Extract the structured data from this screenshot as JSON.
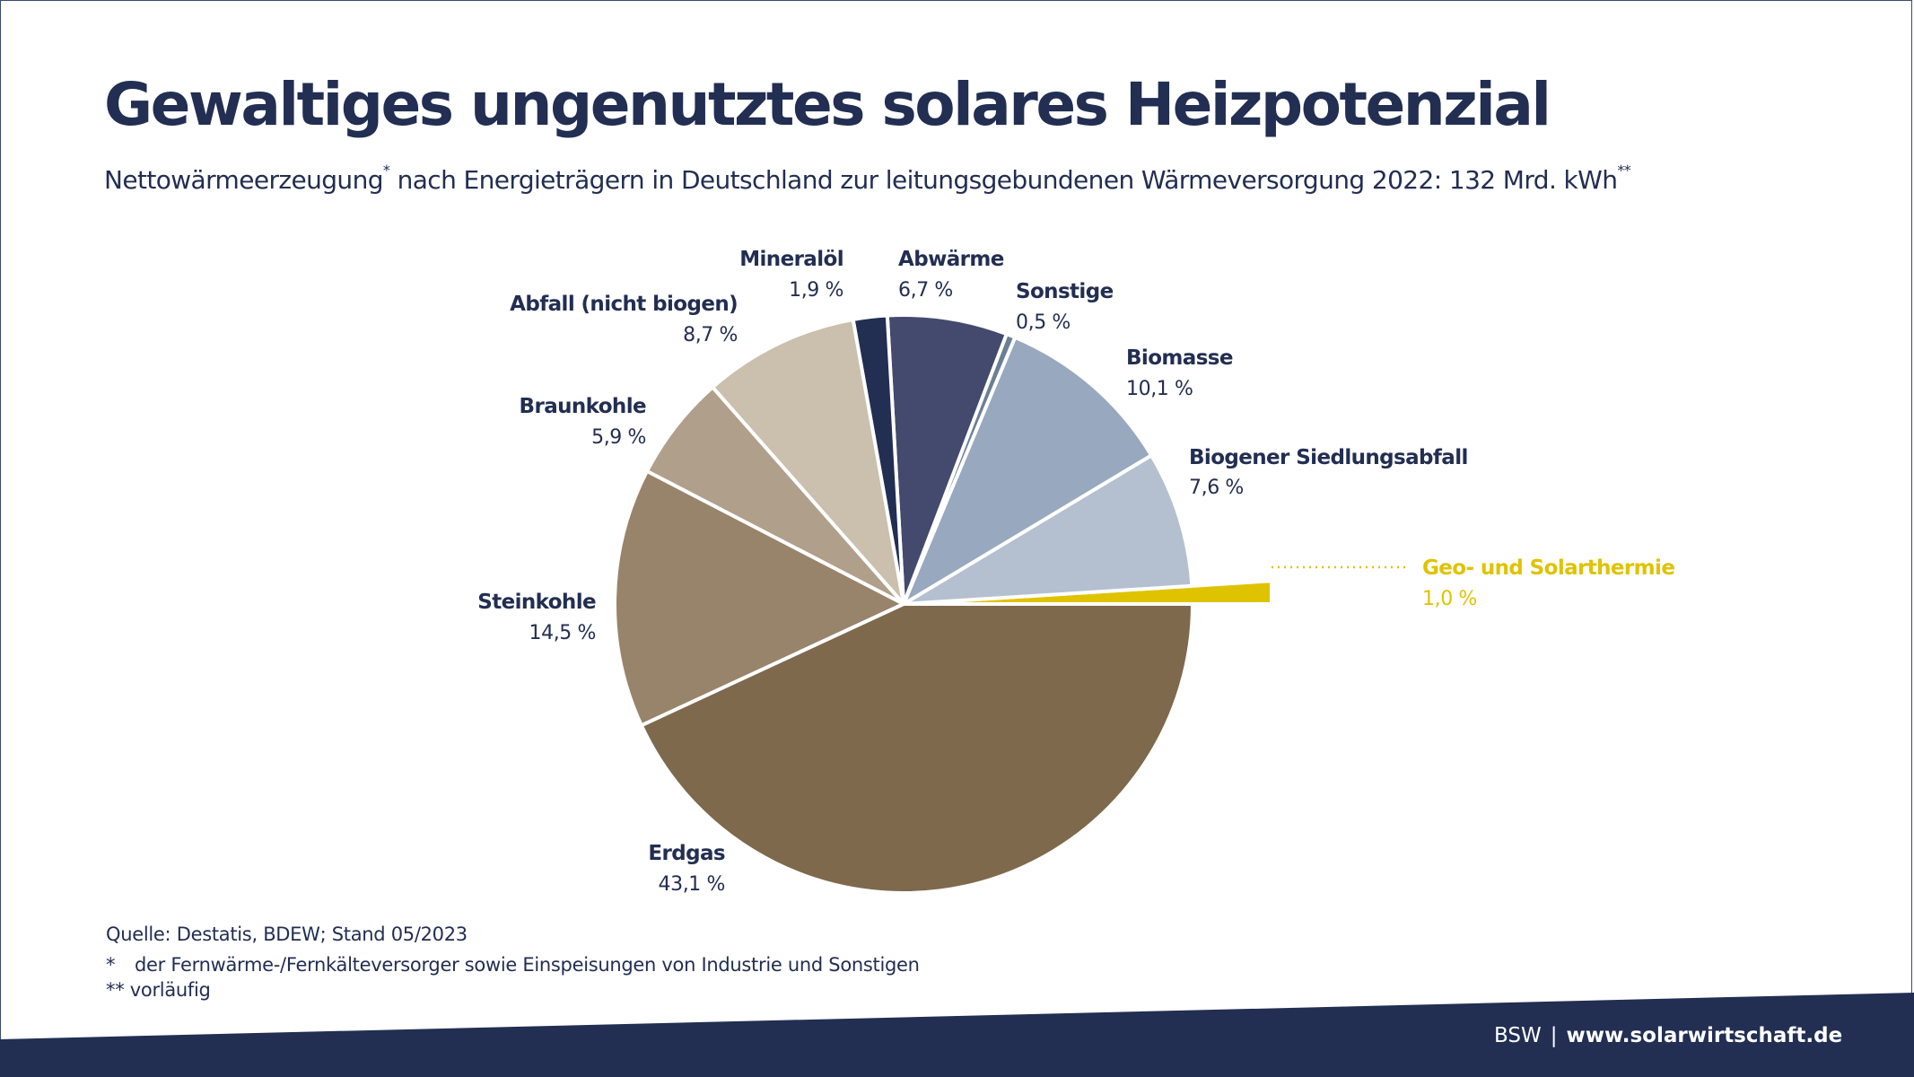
{
  "header": {
    "title": "Gewaltiges ungenutztes solares Heizpotenzial",
    "subtitle_part1": "Nettowärmeerzeugung",
    "subtitle_mark1": "*",
    "subtitle_part2": " nach Energieträgern in Deutschland zur leitungsgebundenen Wärmeversorgung 2022: 132 Mrd. kWh",
    "subtitle_mark2": "**"
  },
  "colors": {
    "brand_navy": "#222e52",
    "highlight": "#dfc300"
  },
  "chart_data": {
    "type": "pie",
    "title": "Nettowärmeerzeugung nach Energieträgern in Deutschland zur leitungsgebundenen Wärmeversorgung 2022: 132 Mrd. kWh",
    "unit": "%",
    "total": "132 Mrd. kWh",
    "start": "3 o'clock, counter-clockwise",
    "slices": [
      {
        "name": "Geo- und Solarthermie",
        "value": 1.0,
        "label": "1,0 %",
        "color": "#dfc300",
        "exploded": true,
        "highlight": true
      },
      {
        "name": "Biogener Siedlungsabfall",
        "value": 7.6,
        "label": "7,6 %",
        "color": "#b4c0d0"
      },
      {
        "name": "Biomasse",
        "value": 10.1,
        "label": "10,1 %",
        "color": "#97a8bf"
      },
      {
        "name": "Sonstige",
        "value": 0.5,
        "label": "0,5 %",
        "color": "#6b7f94"
      },
      {
        "name": "Abwärme",
        "value": 6.7,
        "label": "6,7 %",
        "color": "#434a6e"
      },
      {
        "name": "Mineralöl",
        "value": 1.9,
        "label": "1,9 %",
        "color": "#222e52"
      },
      {
        "name": "Abfall (nicht biogen)",
        "value": 8.7,
        "label": "8,7 %",
        "color": "#cbbfae"
      },
      {
        "name": "Braunkohle",
        "value": 5.9,
        "label": "5,9 %",
        "color": "#b0a08b"
      },
      {
        "name": "Steinkohle",
        "value": 14.5,
        "label": "14,5 %",
        "color": "#97846a"
      },
      {
        "name": "Erdgas",
        "value": 43.1,
        "label": "43,1 %",
        "color": "#7e694d"
      }
    ]
  },
  "notes": {
    "source": "Quelle: Destatis, BDEW; Stand 05/2023",
    "fn1_mark": "*",
    "fn1_text": "der Fernwärme-/Fernkälteversorger sowie Einspeisungen von Industrie und Sonstigen",
    "fn2_mark": "**",
    "fn2_text": "vorläufig"
  },
  "footer": {
    "org": "BSW",
    "separator": "|",
    "url": "www.solarwirtschaft.de"
  }
}
